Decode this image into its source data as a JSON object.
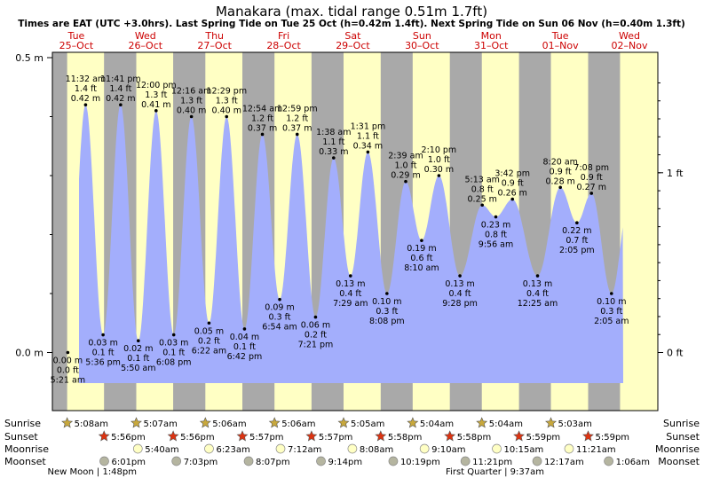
{
  "chart_data": {
    "type": "area",
    "title": "Manakara (max. tidal range 0.51m 1.7ft)",
    "subtitle": "Times are EAT (UTC +3.0hrs). Last Spring Tide on Tue 25 Oct (h=0.42m 1.4ft). Next Spring Tide on Sun 06 Nov (h=0.40m 1.3ft)",
    "y_axis_left": {
      "unit": "m",
      "range": [
        -0.075,
        0.51
      ],
      "ticks": [
        {
          "value": 0.0,
          "label": "0.0 m"
        },
        {
          "value": 0.5,
          "label": "0.5 m"
        }
      ]
    },
    "y_axis_right": {
      "unit": "ft",
      "ticks": [
        {
          "value": 0.0,
          "label": "0 ft"
        },
        {
          "value": 1.0,
          "label": "1 ft"
        }
      ]
    },
    "days": [
      {
        "name": "Tue",
        "date": "25–Oct"
      },
      {
        "name": "Wed",
        "date": "26–Oct"
      },
      {
        "name": "Thu",
        "date": "27–Oct"
      },
      {
        "name": "Fri",
        "date": "28–Oct"
      },
      {
        "name": "Sat",
        "date": "29–Oct"
      },
      {
        "name": "Sun",
        "date": "30–Oct"
      },
      {
        "name": "Mon",
        "date": "31–Oct"
      },
      {
        "name": "Tue",
        "date": "01–Nov"
      },
      {
        "name": "Wed",
        "date": "02–Nov"
      }
    ],
    "tides": [
      {
        "t": 5.35,
        "m": 0.0,
        "time": "5:21 am",
        "mlabel": "0.00 m",
        "ft": "0.0 ft",
        "type": "low"
      },
      {
        "t": 11.53,
        "m": 0.42,
        "time": "11:32 am",
        "mlabel": "0.42 m",
        "ft": "1.4 ft",
        "type": "high"
      },
      {
        "t": 17.6,
        "m": 0.03,
        "time": "5:36 pm",
        "mlabel": "0.03 m",
        "ft": "0.1 ft",
        "type": "low"
      },
      {
        "t": 23.68,
        "m": 0.42,
        "time": "11:41 pm",
        "mlabel": "0.42 m",
        "ft": "1.4 ft",
        "type": "high"
      },
      {
        "t": 29.83,
        "m": 0.02,
        "time": "5:50 am",
        "mlabel": "0.02 m",
        "ft": "0.1 ft",
        "type": "low"
      },
      {
        "t": 36.0,
        "m": 0.41,
        "time": "12:00 pm",
        "mlabel": "0.41 m",
        "ft": "1.3 ft",
        "type": "high"
      },
      {
        "t": 42.13,
        "m": 0.03,
        "time": "6:08 pm",
        "mlabel": "0.03 m",
        "ft": "0.1 ft",
        "type": "low"
      },
      {
        "t": 48.27,
        "m": 0.4,
        "time": "12:16 am",
        "mlabel": "0.40 m",
        "ft": "1.3 ft",
        "type": "high"
      },
      {
        "t": 54.37,
        "m": 0.05,
        "time": "6:22 am",
        "mlabel": "0.05 m",
        "ft": "0.2 ft",
        "type": "low"
      },
      {
        "t": 60.48,
        "m": 0.4,
        "time": "12:29 pm",
        "mlabel": "0.40 m",
        "ft": "1.3 ft",
        "type": "high"
      },
      {
        "t": 66.7,
        "m": 0.04,
        "time": "6:42 pm",
        "mlabel": "0.04 m",
        "ft": "0.1 ft",
        "type": "low"
      },
      {
        "t": 72.9,
        "m": 0.37,
        "time": "12:54 am",
        "mlabel": "0.37 m",
        "ft": "1.2 ft",
        "type": "high"
      },
      {
        "t": 78.9,
        "m": 0.09,
        "time": "6:54 am",
        "mlabel": "0.09 m",
        "ft": "0.3 ft",
        "type": "low"
      },
      {
        "t": 84.98,
        "m": 0.37,
        "time": "12:59 pm",
        "mlabel": "0.37 m",
        "ft": "1.2 ft",
        "type": "high"
      },
      {
        "t": 91.35,
        "m": 0.06,
        "time": "7:21 pm",
        "mlabel": "0.06 m",
        "ft": "0.2 ft",
        "type": "low"
      },
      {
        "t": 97.63,
        "m": 0.33,
        "time": "1:38 am",
        "mlabel": "0.33 m",
        "ft": "1.1 ft",
        "type": "high"
      },
      {
        "t": 103.48,
        "m": 0.13,
        "time": "7:29 am",
        "mlabel": "0.13 m",
        "ft": "0.4 ft",
        "type": "low"
      },
      {
        "t": 109.52,
        "m": 0.34,
        "time": "1:31 pm",
        "mlabel": "0.34 m",
        "ft": "1.1 ft",
        "type": "high"
      },
      {
        "t": 116.13,
        "m": 0.1,
        "time": "8:08 pm",
        "mlabel": "0.10 m",
        "ft": "0.3 ft",
        "type": "low"
      },
      {
        "t": 122.65,
        "m": 0.29,
        "time": "2:39 am",
        "mlabel": "0.29 m",
        "ft": "1.0 ft",
        "type": "high"
      },
      {
        "t": 128.17,
        "m": 0.19,
        "time": "8:10 am",
        "mlabel": "0.19 m",
        "ft": "0.6 ft",
        "type": "low"
      },
      {
        "t": 134.17,
        "m": 0.3,
        "time": "2:10 pm",
        "mlabel": "0.30 m",
        "ft": "1.0 ft",
        "type": "high"
      },
      {
        "t": 141.47,
        "m": 0.13,
        "time": "9:28 pm",
        "mlabel": "0.13 m",
        "ft": "0.4 ft",
        "type": "low"
      },
      {
        "t": 149.22,
        "m": 0.25,
        "time": "5:13 am",
        "mlabel": "0.25 m",
        "ft": "0.8 ft",
        "type": "high"
      },
      {
        "t": 153.93,
        "m": 0.23,
        "time": "9:56 am",
        "mlabel": "0.23 m",
        "ft": "0.8 ft",
        "type": "low"
      },
      {
        "t": 159.7,
        "m": 0.26,
        "time": "3:42 pm",
        "mlabel": "0.26 m",
        "ft": "0.9 ft",
        "type": "high"
      },
      {
        "t": 168.42,
        "m": 0.13,
        "time": "12:25 am",
        "mlabel": "0.13 m",
        "ft": "0.4 ft",
        "type": "low"
      },
      {
        "t": 176.33,
        "m": 0.28,
        "time": "8:20 am",
        "mlabel": "0.28 m",
        "ft": "0.9 ft",
        "type": "high"
      },
      {
        "t": 182.08,
        "m": 0.22,
        "time": "2:05 pm",
        "mlabel": "0.22 m",
        "ft": "0.7 ft",
        "type": "low"
      },
      {
        "t": 187.13,
        "m": 0.27,
        "time": "7:08 pm",
        "mlabel": "0.27 m",
        "ft": "0.9 ft",
        "type": "high"
      },
      {
        "t": 194.08,
        "m": 0.1,
        "time": "2:05 am",
        "mlabel": "0.10 m",
        "ft": "0.3 ft",
        "type": "low"
      }
    ],
    "sun_moon": {
      "row_labels": [
        "Sunrise",
        "Sunset",
        "Moonrise",
        "Moonset"
      ],
      "sunrise": [
        {
          "t": 5.13,
          "label": "5:08am"
        },
        {
          "t": 29.12,
          "label": "5:07am"
        },
        {
          "t": 53.1,
          "label": "5:06am"
        },
        {
          "t": 77.1,
          "label": "5:06am"
        },
        {
          "t": 101.08,
          "label": "5:05am"
        },
        {
          "t": 125.07,
          "label": "5:04am"
        },
        {
          "t": 149.07,
          "label": "5:04am"
        },
        {
          "t": 173.05,
          "label": "5:03am"
        }
      ],
      "sunset": [
        {
          "t": 17.93,
          "label": "5:56pm"
        },
        {
          "t": 41.93,
          "label": "5:56pm"
        },
        {
          "t": 65.95,
          "label": "5:57pm"
        },
        {
          "t": 89.95,
          "label": "5:57pm"
        },
        {
          "t": 113.97,
          "label": "5:58pm"
        },
        {
          "t": 137.97,
          "label": "5:58pm"
        },
        {
          "t": 161.98,
          "label": "5:59pm"
        },
        {
          "t": 185.98,
          "label": "5:59pm"
        }
      ],
      "moonrise": [
        {
          "t": 29.67,
          "label": "5:40am"
        },
        {
          "t": 54.38,
          "label": "6:23am"
        },
        {
          "t": 79.2,
          "label": "7:12am"
        },
        {
          "t": 104.13,
          "label": "8:08am"
        },
        {
          "t": 129.17,
          "label": "9:10am"
        },
        {
          "t": 154.25,
          "label": "10:15am"
        },
        {
          "t": 179.35,
          "label": "11:21am"
        }
      ],
      "moonset": [
        {
          "t": 18.02,
          "label": "6:01pm"
        },
        {
          "t": 43.05,
          "label": "7:03pm"
        },
        {
          "t": 68.12,
          "label": "8:07pm"
        },
        {
          "t": 93.23,
          "label": "9:14pm"
        },
        {
          "t": 118.32,
          "label": "10:19pm"
        },
        {
          "t": 143.35,
          "label": "11:21pm"
        },
        {
          "t": 168.28,
          "label": "12:17am"
        },
        {
          "t": 193.1,
          "label": "1:06am"
        }
      ],
      "moon_phases": [
        {
          "t": 13.8,
          "label": "New Moon | 1:48pm"
        },
        {
          "t": 153.62,
          "label": "First Quarter | 9:37am"
        }
      ]
    },
    "colors": {
      "night": "#a9a9a9",
      "day": "#ffffc4",
      "water": "#a3aefc",
      "text": "#000000",
      "day_label": "#cc0000",
      "sun_star": "#c8a83c",
      "sunset_star": "#dd3311",
      "moonrise": "#ffffc4",
      "moonset": "#b5b5a0"
    }
  }
}
